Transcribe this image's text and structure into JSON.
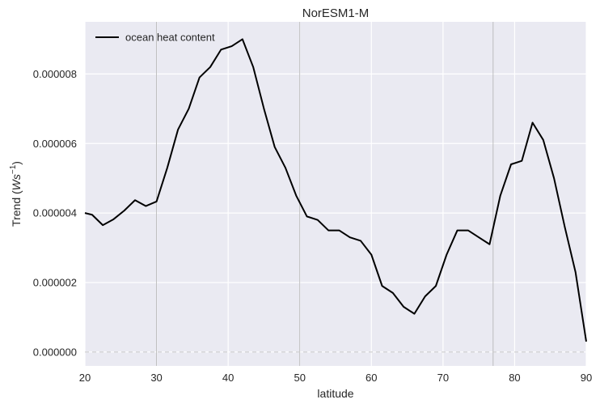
{
  "chart_data": {
    "type": "line",
    "title": "NorESM1-M",
    "xlabel": "latitude",
    "ylabel": "Trend (",
    "ylabel_unit_italic": "Ws",
    "ylabel_unit_sup": "−1",
    "ylabel_close": ")",
    "xlim": [
      20,
      90
    ],
    "ylim": [
      -4e-07,
      9.5e-06
    ],
    "xticks": [
      20,
      30,
      40,
      50,
      60,
      70,
      80,
      90
    ],
    "xtick_labels": [
      "20",
      "30",
      "40",
      "50",
      "60",
      "70",
      "80",
      "90"
    ],
    "yticks": [
      0,
      2e-06,
      4e-06,
      6e-06,
      8e-06
    ],
    "ytick_labels": [
      "0.000000",
      "0.000002",
      "0.000004",
      "0.000006",
      "0.000008"
    ],
    "grid": true,
    "style": "seaborn-darkgrid",
    "legend_position": "upper-left",
    "vertical_markers": [
      30,
      50,
      77
    ],
    "zero_line": true,
    "colors": {
      "background": "#eaeaf2",
      "grid": "#ffffff",
      "line": "#000000",
      "markers": "#b0b0b0",
      "zero_line": "#c8c8c8"
    },
    "series": [
      {
        "name": "ocean heat content",
        "color": "#000000",
        "x": [
          20.0,
          21.0,
          22.5,
          24.0,
          25.5,
          27.0,
          28.5,
          30.0,
          31.5,
          33.0,
          34.5,
          36.0,
          37.5,
          39.0,
          40.5,
          42.0,
          43.5,
          45.0,
          46.5,
          48.0,
          49.5,
          51.0,
          52.5,
          54.0,
          55.5,
          57.0,
          58.5,
          60.0,
          61.5,
          63.0,
          64.5,
          66.0,
          67.5,
          69.0,
          70.5,
          72.0,
          73.5,
          75.0,
          76.5,
          78.0,
          79.5,
          81.0,
          82.5,
          84.0,
          85.5,
          87.0,
          88.5,
          90.0
        ],
        "y": [
          4e-06,
          3.95e-06,
          3.65e-06,
          3.82e-06,
          4.07e-06,
          4.37e-06,
          4.2e-06,
          4.33e-06,
          5.3e-06,
          6.4e-06,
          7e-06,
          7.9e-06,
          8.2e-06,
          8.7e-06,
          8.8e-06,
          9e-06,
          8.2e-06,
          7e-06,
          5.9e-06,
          5.3e-06,
          4.5e-06,
          3.9e-06,
          3.8e-06,
          3.5e-06,
          3.5e-06,
          3.3e-06,
          3.2e-06,
          2.8e-06,
          1.9e-06,
          1.7e-06,
          1.3e-06,
          1.1e-06,
          1.6e-06,
          1.9e-06,
          2.8e-06,
          3.5e-06,
          3.5e-06,
          3.3e-06,
          3.1e-06,
          4.5e-06,
          5.4e-06,
          5.5e-06,
          6.6e-06,
          6.1e-06,
          5e-06,
          3.6e-06,
          2.3e-06,
          3e-07
        ]
      }
    ]
  }
}
